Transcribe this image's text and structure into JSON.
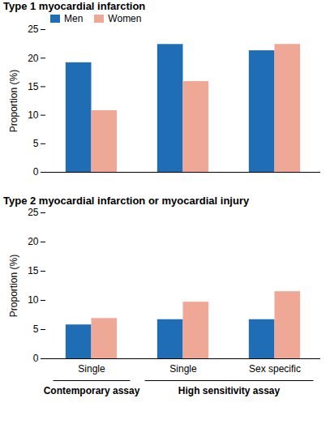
{
  "chart_data": [
    {
      "type": "bar",
      "title": "Type 1 myocardial infarction",
      "categories": [
        "Single",
        "Single",
        "Sex specific"
      ],
      "series": [
        {
          "name": "Men",
          "color": "#1f6db5",
          "values": [
            19.2,
            22.4,
            21.3
          ]
        },
        {
          "name": "Women",
          "color": "#f0a896",
          "values": [
            10.8,
            15.9,
            22.4
          ]
        }
      ],
      "y_label": "Proportion (%)",
      "ylim": [
        0,
        25
      ],
      "yticks": [
        0,
        5,
        10,
        15,
        20,
        25
      ],
      "legend": "top-left",
      "tick_labels": "y"
    },
    {
      "type": "bar",
      "title": "Type 2 myocardial infarction or myocardial injury",
      "categories": [
        "Single",
        "Single",
        "Sex specific"
      ],
      "series": [
        {
          "name": "Men",
          "color": "#1f6db5",
          "values": [
            5.8,
            6.7,
            6.7
          ]
        },
        {
          "name": "Women",
          "color": "#f0a896",
          "values": [
            6.9,
            9.7,
            11.5
          ]
        }
      ],
      "x_groups": [
        {
          "label": "Contemporary assay",
          "count": 1
        },
        {
          "label": "High sensitivity assay",
          "count": 2
        }
      ],
      "y_label": "Proportion (%)",
      "ylim": [
        0,
        25
      ],
      "yticks": [
        0,
        5,
        10,
        15,
        20,
        25
      ]
    }
  ]
}
